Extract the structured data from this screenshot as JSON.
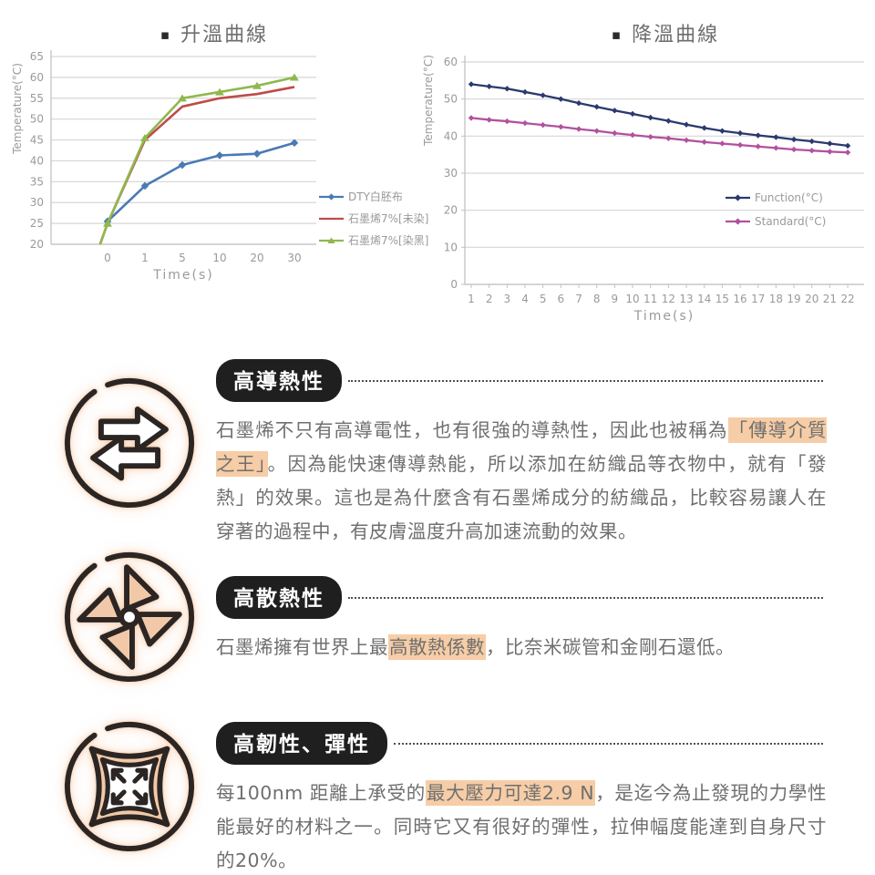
{
  "colors": {
    "highlight": "#f6cda6",
    "badge_bg": "#1f1f1f",
    "badge_text": "#ffffff",
    "body_text": "#6f6f6f",
    "title_text": "#6e6e6e",
    "icon_stroke": "#2b2624",
    "icon_fill": "#f2c9a8",
    "grid": "#d6d6d6",
    "axis": "#c2c2c2",
    "tick_text": "#9a9a9a"
  },
  "chart_data": [
    {
      "type": "line",
      "title": "升溫曲線",
      "title_bullet": "▪",
      "xlabel": "Time(s)",
      "ylabel": "Temperature(°C)",
      "ylim": [
        20,
        65
      ],
      "ytick": 5,
      "grid": true,
      "legend_position": "right-outside",
      "categories": [
        "0",
        "1",
        "5",
        "10",
        "20",
        "30"
      ],
      "series": [
        {
          "name": "DTY白胚布",
          "color": "#4a7ab5",
          "marker": "diamond",
          "values": [
            25.5,
            34,
            39,
            41.3,
            41.7,
            44.3
          ]
        },
        {
          "name": "石墨烯7%[未染]",
          "color": "#bf4b47",
          "marker": "none",
          "lead": [
            -0.2,
            20
          ],
          "values": [
            25,
            45,
            53,
            55,
            56,
            57.7
          ]
        },
        {
          "name": "石墨烯7%[染黑]",
          "color": "#8fb84e",
          "marker": "triangle",
          "lead": [
            -0.2,
            20
          ],
          "values": [
            25,
            45.5,
            55,
            56.5,
            58,
            60
          ]
        }
      ]
    },
    {
      "type": "line",
      "title": "降溫曲線",
      "title_bullet": "▪",
      "xlabel": "Time(s)",
      "ylabel": "Temperature(°C)",
      "ylim": [
        0,
        60
      ],
      "ytick": 10,
      "grid": true,
      "legend_position": "inside-right",
      "categories": [
        "1",
        "2",
        "3",
        "4",
        "5",
        "6",
        "7",
        "8",
        "9",
        "10",
        "11",
        "12",
        "13",
        "14",
        "15",
        "16",
        "17",
        "18",
        "19",
        "20",
        "21",
        "22"
      ],
      "series": [
        {
          "name": "Function(°C)",
          "color": "#2a3a6e",
          "marker": "diamond",
          "values": [
            54,
            53.4,
            52.8,
            51.9,
            51,
            50,
            48.9,
            47.9,
            46.9,
            46,
            45,
            44.1,
            43.1,
            42.2,
            41.4,
            40.8,
            40.2,
            39.7,
            39.1,
            38.6,
            38,
            37.4
          ]
        },
        {
          "name": "Standard(°C)",
          "color": "#b1519e",
          "marker": "diamond",
          "values": [
            44.9,
            44.4,
            44,
            43.5,
            43,
            42.5,
            41.9,
            41.4,
            40.8,
            40.3,
            39.8,
            39.4,
            38.9,
            38.4,
            38,
            37.6,
            37.2,
            36.8,
            36.4,
            36.1,
            35.8,
            35.6
          ]
        }
      ]
    }
  ],
  "sections": [
    {
      "icon": "transfer-arrows",
      "badge": "高導熱性",
      "paragraph": [
        {
          "t": "石墨烯不只有高導電性，也有很強的導熱性，因此也被稱為"
        },
        {
          "t": "「傳導介質之王」",
          "hl": true
        },
        {
          "t": "。因為能快速傳導熱能，所以添加在紡織品等衣物中，就有「發熱」的效果。這也是為什麼含有石墨烯成分的紡織品，比較容易讓人在穿著的過程中，有皮膚溫度升高加速流動的效果。"
        }
      ]
    },
    {
      "icon": "pinwheel",
      "badge": "高散熱性",
      "paragraph": [
        {
          "t": "石墨烯擁有世界上最"
        },
        {
          "t": "高散熱係數",
          "hl": true
        },
        {
          "t": "，比奈米碳管和金剛石還低。"
        }
      ]
    },
    {
      "icon": "stretch",
      "badge": "高韌性、彈性",
      "paragraph": [
        {
          "t": "每100nm 距離上承受的"
        },
        {
          "t": "最大壓力可達2.9 N",
          "hl": true
        },
        {
          "t": "，是迄今為止發現的力學性能最好的材料之一。同時它又有很好的彈性，拉伸幅度能達到自身尺寸的20%。"
        }
      ]
    }
  ]
}
